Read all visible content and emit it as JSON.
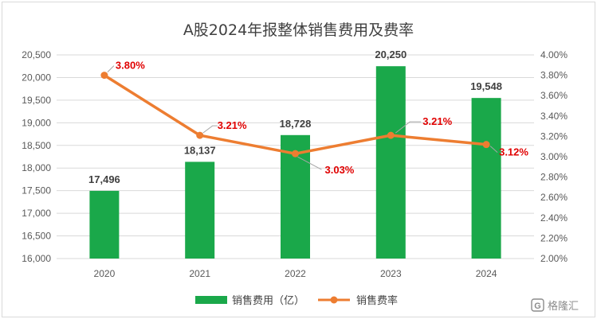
{
  "chart_data": {
    "type": "bar",
    "title": "A股2024年报整体销售费用及费率",
    "categories": [
      "2020",
      "2021",
      "2022",
      "2023",
      "2024"
    ],
    "series": [
      {
        "name": "销售费用（亿）",
        "type": "bar",
        "axis": "left",
        "values": [
          17496,
          18137,
          18728,
          20250,
          19548
        ],
        "labels": [
          "17,496",
          "18,137",
          "18,728",
          "20,250",
          "19,548"
        ],
        "color": "#1aa84a"
      },
      {
        "name": "销售费率",
        "type": "line",
        "axis": "right",
        "values": [
          3.8,
          3.21,
          3.03,
          3.21,
          3.12
        ],
        "labels": [
          "3.80%",
          "3.21%",
          "3.03%",
          "3.21%",
          "3.12%"
        ],
        "color": "#ed7d31",
        "label_color": "#e00000"
      }
    ],
    "y_left": {
      "min": 16000,
      "max": 20500,
      "step": 500,
      "ticks": [
        "16,000",
        "16,500",
        "17,000",
        "17,500",
        "18,000",
        "18,500",
        "19,000",
        "19,500",
        "20,000",
        "20,500"
      ]
    },
    "y_right": {
      "min": 2.0,
      "max": 4.0,
      "step": 0.2,
      "ticks": [
        "2.00%",
        "2.20%",
        "2.40%",
        "2.60%",
        "2.80%",
        "3.00%",
        "3.20%",
        "3.40%",
        "3.60%",
        "3.80%",
        "4.00%"
      ]
    },
    "grid": true,
    "legend_position": "bottom"
  },
  "watermark": {
    "text": "格隆汇",
    "icon": "gelonghui-logo"
  }
}
